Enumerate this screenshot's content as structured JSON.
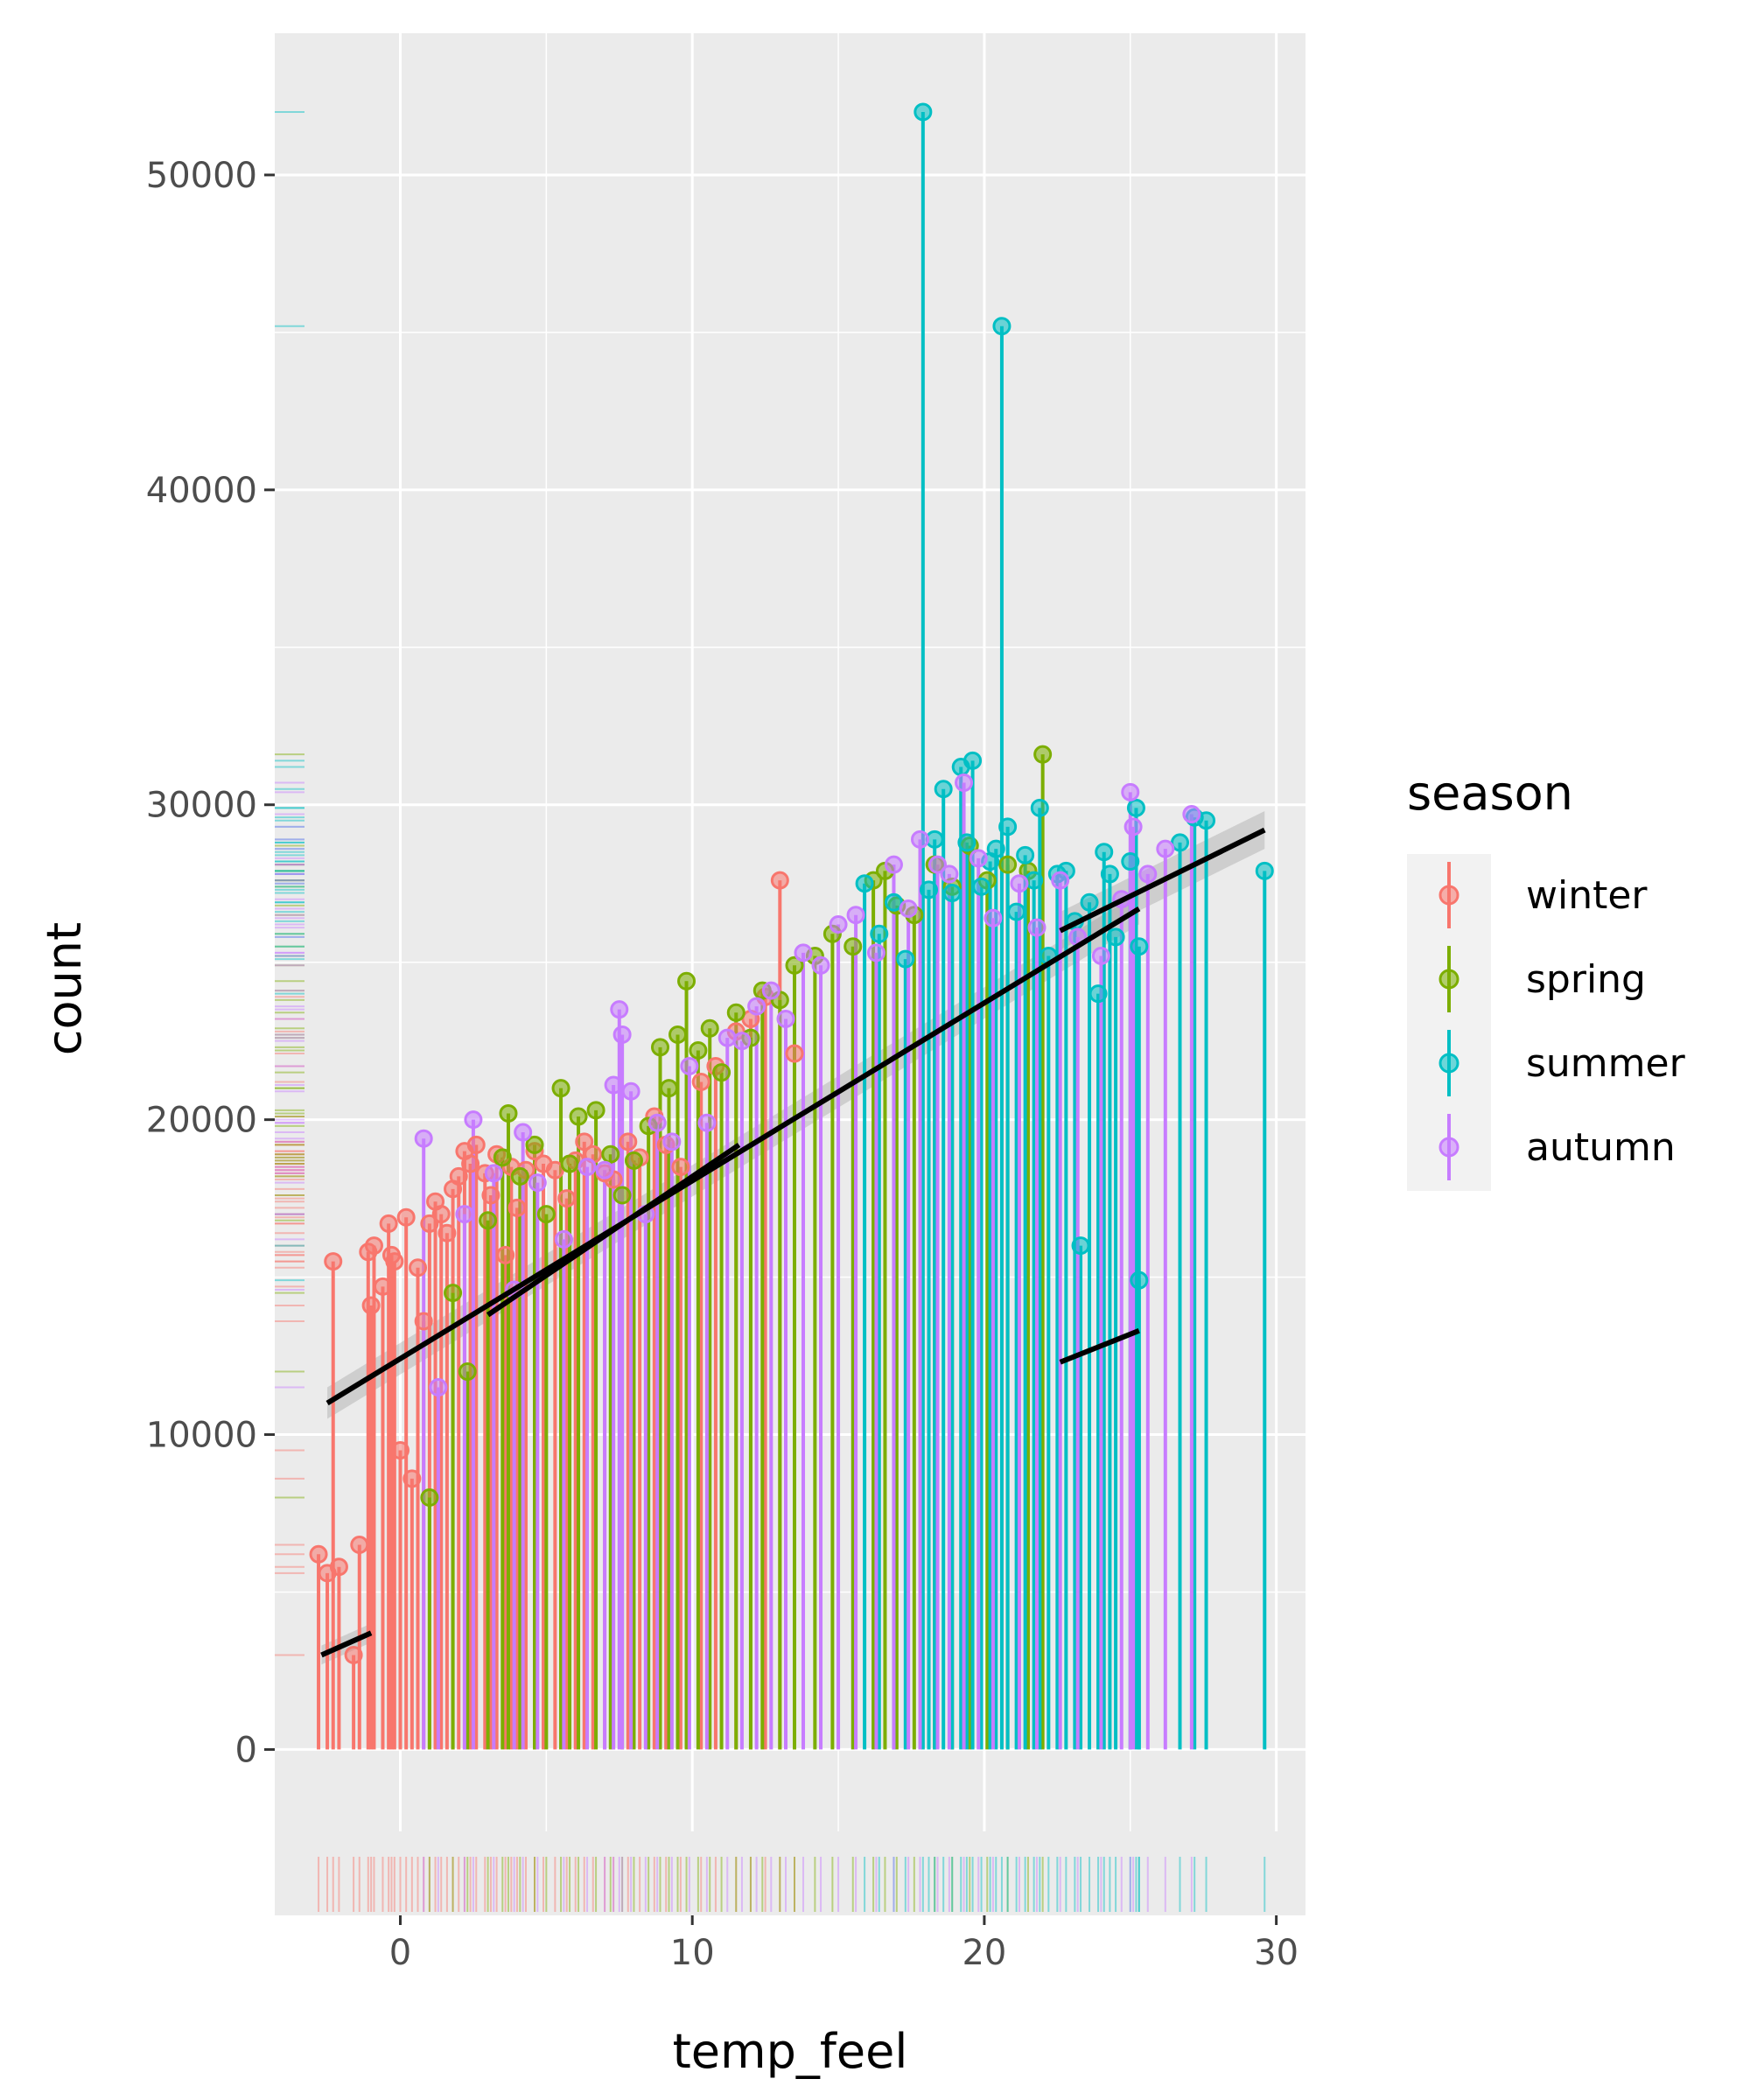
{
  "chart_data": {
    "type": "scatter",
    "xlabel": "temp_feel",
    "ylabel": "count",
    "xlim": [
      -4.3,
      31
    ],
    "ylim": [
      -2600,
      54500
    ],
    "x_ticks": [
      {
        "value": 0,
        "label": "0"
      },
      {
        "value": 10,
        "label": "10"
      },
      {
        "value": 20,
        "label": "20"
      },
      {
        "value": 30,
        "label": "30"
      }
    ],
    "y_ticks": [
      {
        "value": 0,
        "label": "0"
      },
      {
        "value": 10000,
        "label": "10000"
      },
      {
        "value": 20000,
        "label": "20000"
      },
      {
        "value": 30000,
        "label": "30000"
      },
      {
        "value": 40000,
        "label": "40000"
      },
      {
        "value": 50000,
        "label": "50000"
      }
    ],
    "grid": true,
    "legend": {
      "title": "season",
      "position": "right"
    },
    "series": [
      {
        "name": "winter",
        "color": "#F8766D",
        "points": [
          [
            -2.8,
            6200
          ],
          [
            -2.5,
            5600
          ],
          [
            -2.3,
            15500
          ],
          [
            -2.1,
            5800
          ],
          [
            -1.6,
            3000
          ],
          [
            -1.4,
            6500
          ],
          [
            -1.1,
            15800
          ],
          [
            -1.0,
            14100
          ],
          [
            -0.9,
            16000
          ],
          [
            -0.6,
            14700
          ],
          [
            -0.4,
            16700
          ],
          [
            -0.3,
            15700
          ],
          [
            -0.2,
            15500
          ],
          [
            0.0,
            9500
          ],
          [
            0.2,
            16900
          ],
          [
            0.4,
            8600
          ],
          [
            0.6,
            15300
          ],
          [
            0.8,
            13600
          ],
          [
            1.0,
            16700
          ],
          [
            1.2,
            17400
          ],
          [
            1.4,
            17000
          ],
          [
            1.6,
            16400
          ],
          [
            1.8,
            17800
          ],
          [
            2.0,
            18200
          ],
          [
            2.2,
            19000
          ],
          [
            2.4,
            18600
          ],
          [
            2.6,
            19200
          ],
          [
            2.9,
            18300
          ],
          [
            3.1,
            17600
          ],
          [
            3.3,
            18900
          ],
          [
            3.6,
            15700
          ],
          [
            3.8,
            18500
          ],
          [
            4.0,
            17200
          ],
          [
            4.3,
            18400
          ],
          [
            4.6,
            19000
          ],
          [
            4.9,
            18600
          ],
          [
            5.3,
            18400
          ],
          [
            5.7,
            17500
          ],
          [
            6.0,
            18700
          ],
          [
            6.3,
            19300
          ],
          [
            6.6,
            18900
          ],
          [
            7.0,
            18300
          ],
          [
            7.3,
            18100
          ],
          [
            7.8,
            19300
          ],
          [
            8.2,
            18800
          ],
          [
            8.7,
            20100
          ],
          [
            9.1,
            19200
          ],
          [
            9.6,
            18500
          ],
          [
            10.3,
            21200
          ],
          [
            10.8,
            21700
          ],
          [
            11.5,
            22800
          ],
          [
            12.0,
            23200
          ],
          [
            12.5,
            23900
          ],
          [
            13.0,
            27600
          ],
          [
            13.5,
            22100
          ]
        ]
      },
      {
        "name": "spring",
        "color": "#7CAE00",
        "points": [
          [
            1.0,
            8000
          ],
          [
            1.8,
            14500
          ],
          [
            2.3,
            12000
          ],
          [
            3.0,
            16800
          ],
          [
            3.5,
            18800
          ],
          [
            3.7,
            20200
          ],
          [
            4.1,
            18200
          ],
          [
            4.6,
            19200
          ],
          [
            5.0,
            17000
          ],
          [
            5.5,
            21000
          ],
          [
            5.8,
            18600
          ],
          [
            6.1,
            20100
          ],
          [
            6.7,
            20300
          ],
          [
            7.2,
            18900
          ],
          [
            7.6,
            17600
          ],
          [
            8.0,
            18700
          ],
          [
            8.5,
            19800
          ],
          [
            8.9,
            22300
          ],
          [
            9.2,
            21000
          ],
          [
            9.5,
            22700
          ],
          [
            9.8,
            24400
          ],
          [
            10.2,
            22200
          ],
          [
            10.6,
            22900
          ],
          [
            11.0,
            21500
          ],
          [
            11.5,
            23400
          ],
          [
            12.0,
            22600
          ],
          [
            12.4,
            24100
          ],
          [
            13.0,
            23800
          ],
          [
            13.5,
            24900
          ],
          [
            14.2,
            25200
          ],
          [
            14.8,
            25900
          ],
          [
            15.5,
            25500
          ],
          [
            16.2,
            27600
          ],
          [
            16.6,
            27900
          ],
          [
            17.0,
            26800
          ],
          [
            17.6,
            26500
          ],
          [
            18.3,
            28100
          ],
          [
            18.9,
            27400
          ],
          [
            19.5,
            28700
          ],
          [
            20.1,
            27600
          ],
          [
            20.8,
            28100
          ],
          [
            21.5,
            27900
          ],
          [
            22.0,
            31600
          ]
        ]
      },
      {
        "name": "summer",
        "color": "#00BFC4",
        "points": [
          [
            15.9,
            27500
          ],
          [
            16.4,
            25900
          ],
          [
            16.9,
            26900
          ],
          [
            17.3,
            25100
          ],
          [
            17.9,
            52000
          ],
          [
            18.1,
            27300
          ],
          [
            18.3,
            28900
          ],
          [
            18.6,
            30500
          ],
          [
            18.9,
            27200
          ],
          [
            19.2,
            31200
          ],
          [
            19.4,
            28800
          ],
          [
            19.6,
            31400
          ],
          [
            19.9,
            27400
          ],
          [
            20.2,
            28200
          ],
          [
            20.4,
            28600
          ],
          [
            20.6,
            45200
          ],
          [
            20.8,
            29300
          ],
          [
            21.1,
            26600
          ],
          [
            21.4,
            28400
          ],
          [
            21.7,
            27600
          ],
          [
            21.9,
            29900
          ],
          [
            22.2,
            25200
          ],
          [
            22.5,
            27800
          ],
          [
            22.8,
            27900
          ],
          [
            23.1,
            26300
          ],
          [
            23.3,
            16000
          ],
          [
            23.6,
            26900
          ],
          [
            23.9,
            24000
          ],
          [
            24.1,
            28500
          ],
          [
            24.3,
            27800
          ],
          [
            24.5,
            25800
          ],
          [
            25.0,
            28200
          ],
          [
            25.2,
            29900
          ],
          [
            25.3,
            25500
          ],
          [
            25.3,
            14900
          ],
          [
            26.7,
            28800
          ],
          [
            27.2,
            29600
          ],
          [
            27.6,
            29500
          ],
          [
            29.6,
            27900
          ]
        ]
      },
      {
        "name": "autumn",
        "color": "#C77CFF",
        "points": [
          [
            0.8,
            19400
          ],
          [
            1.3,
            11500
          ],
          [
            2.2,
            17000
          ],
          [
            2.5,
            20000
          ],
          [
            3.2,
            18300
          ],
          [
            3.9,
            14600
          ],
          [
            4.2,
            19600
          ],
          [
            4.7,
            18000
          ],
          [
            5.6,
            16200
          ],
          [
            6.4,
            18500
          ],
          [
            7.0,
            18400
          ],
          [
            7.3,
            21100
          ],
          [
            7.5,
            23500
          ],
          [
            7.6,
            22700
          ],
          [
            7.9,
            20900
          ],
          [
            8.4,
            17000
          ],
          [
            8.8,
            19900
          ],
          [
            9.3,
            19300
          ],
          [
            9.9,
            21700
          ],
          [
            10.5,
            19900
          ],
          [
            11.2,
            22600
          ],
          [
            11.7,
            22500
          ],
          [
            12.2,
            23600
          ],
          [
            12.7,
            24100
          ],
          [
            13.2,
            23200
          ],
          [
            13.8,
            25300
          ],
          [
            14.4,
            24900
          ],
          [
            15.0,
            26200
          ],
          [
            15.6,
            26500
          ],
          [
            16.3,
            25300
          ],
          [
            16.9,
            28100
          ],
          [
            17.4,
            26700
          ],
          [
            17.8,
            28900
          ],
          [
            18.4,
            28100
          ],
          [
            18.8,
            27800
          ],
          [
            19.3,
            30700
          ],
          [
            19.8,
            28300
          ],
          [
            20.3,
            26400
          ],
          [
            21.2,
            27500
          ],
          [
            21.8,
            26100
          ],
          [
            22.6,
            27600
          ],
          [
            23.2,
            25800
          ],
          [
            24.0,
            25200
          ],
          [
            24.7,
            27000
          ],
          [
            25.0,
            30400
          ],
          [
            25.1,
            29300
          ],
          [
            25.6,
            27800
          ],
          [
            26.2,
            28600
          ],
          [
            27.1,
            29700
          ]
        ]
      }
    ],
    "trend_lines": [
      {
        "x": [
          -2.5,
          25.3
        ],
        "y": [
          11000,
          26700
        ],
        "color": "#000000",
        "band": 500
      },
      {
        "x": [
          -2.7,
          -1.0
        ],
        "y": [
          3000,
          3700
        ],
        "color": "#000000",
        "band": 300
      },
      {
        "x": [
          3.0,
          11.6
        ],
        "y": [
          13800,
          19200
        ],
        "color": "#000000",
        "band": 0
      },
      {
        "x": [
          22.6,
          25.3
        ],
        "y": [
          12300,
          13300
        ],
        "color": "#000000",
        "band": 0
      },
      {
        "x": [
          22.6,
          29.6
        ],
        "y": [
          26000,
          29200
        ],
        "color": "#000000",
        "band": 600
      }
    ]
  }
}
